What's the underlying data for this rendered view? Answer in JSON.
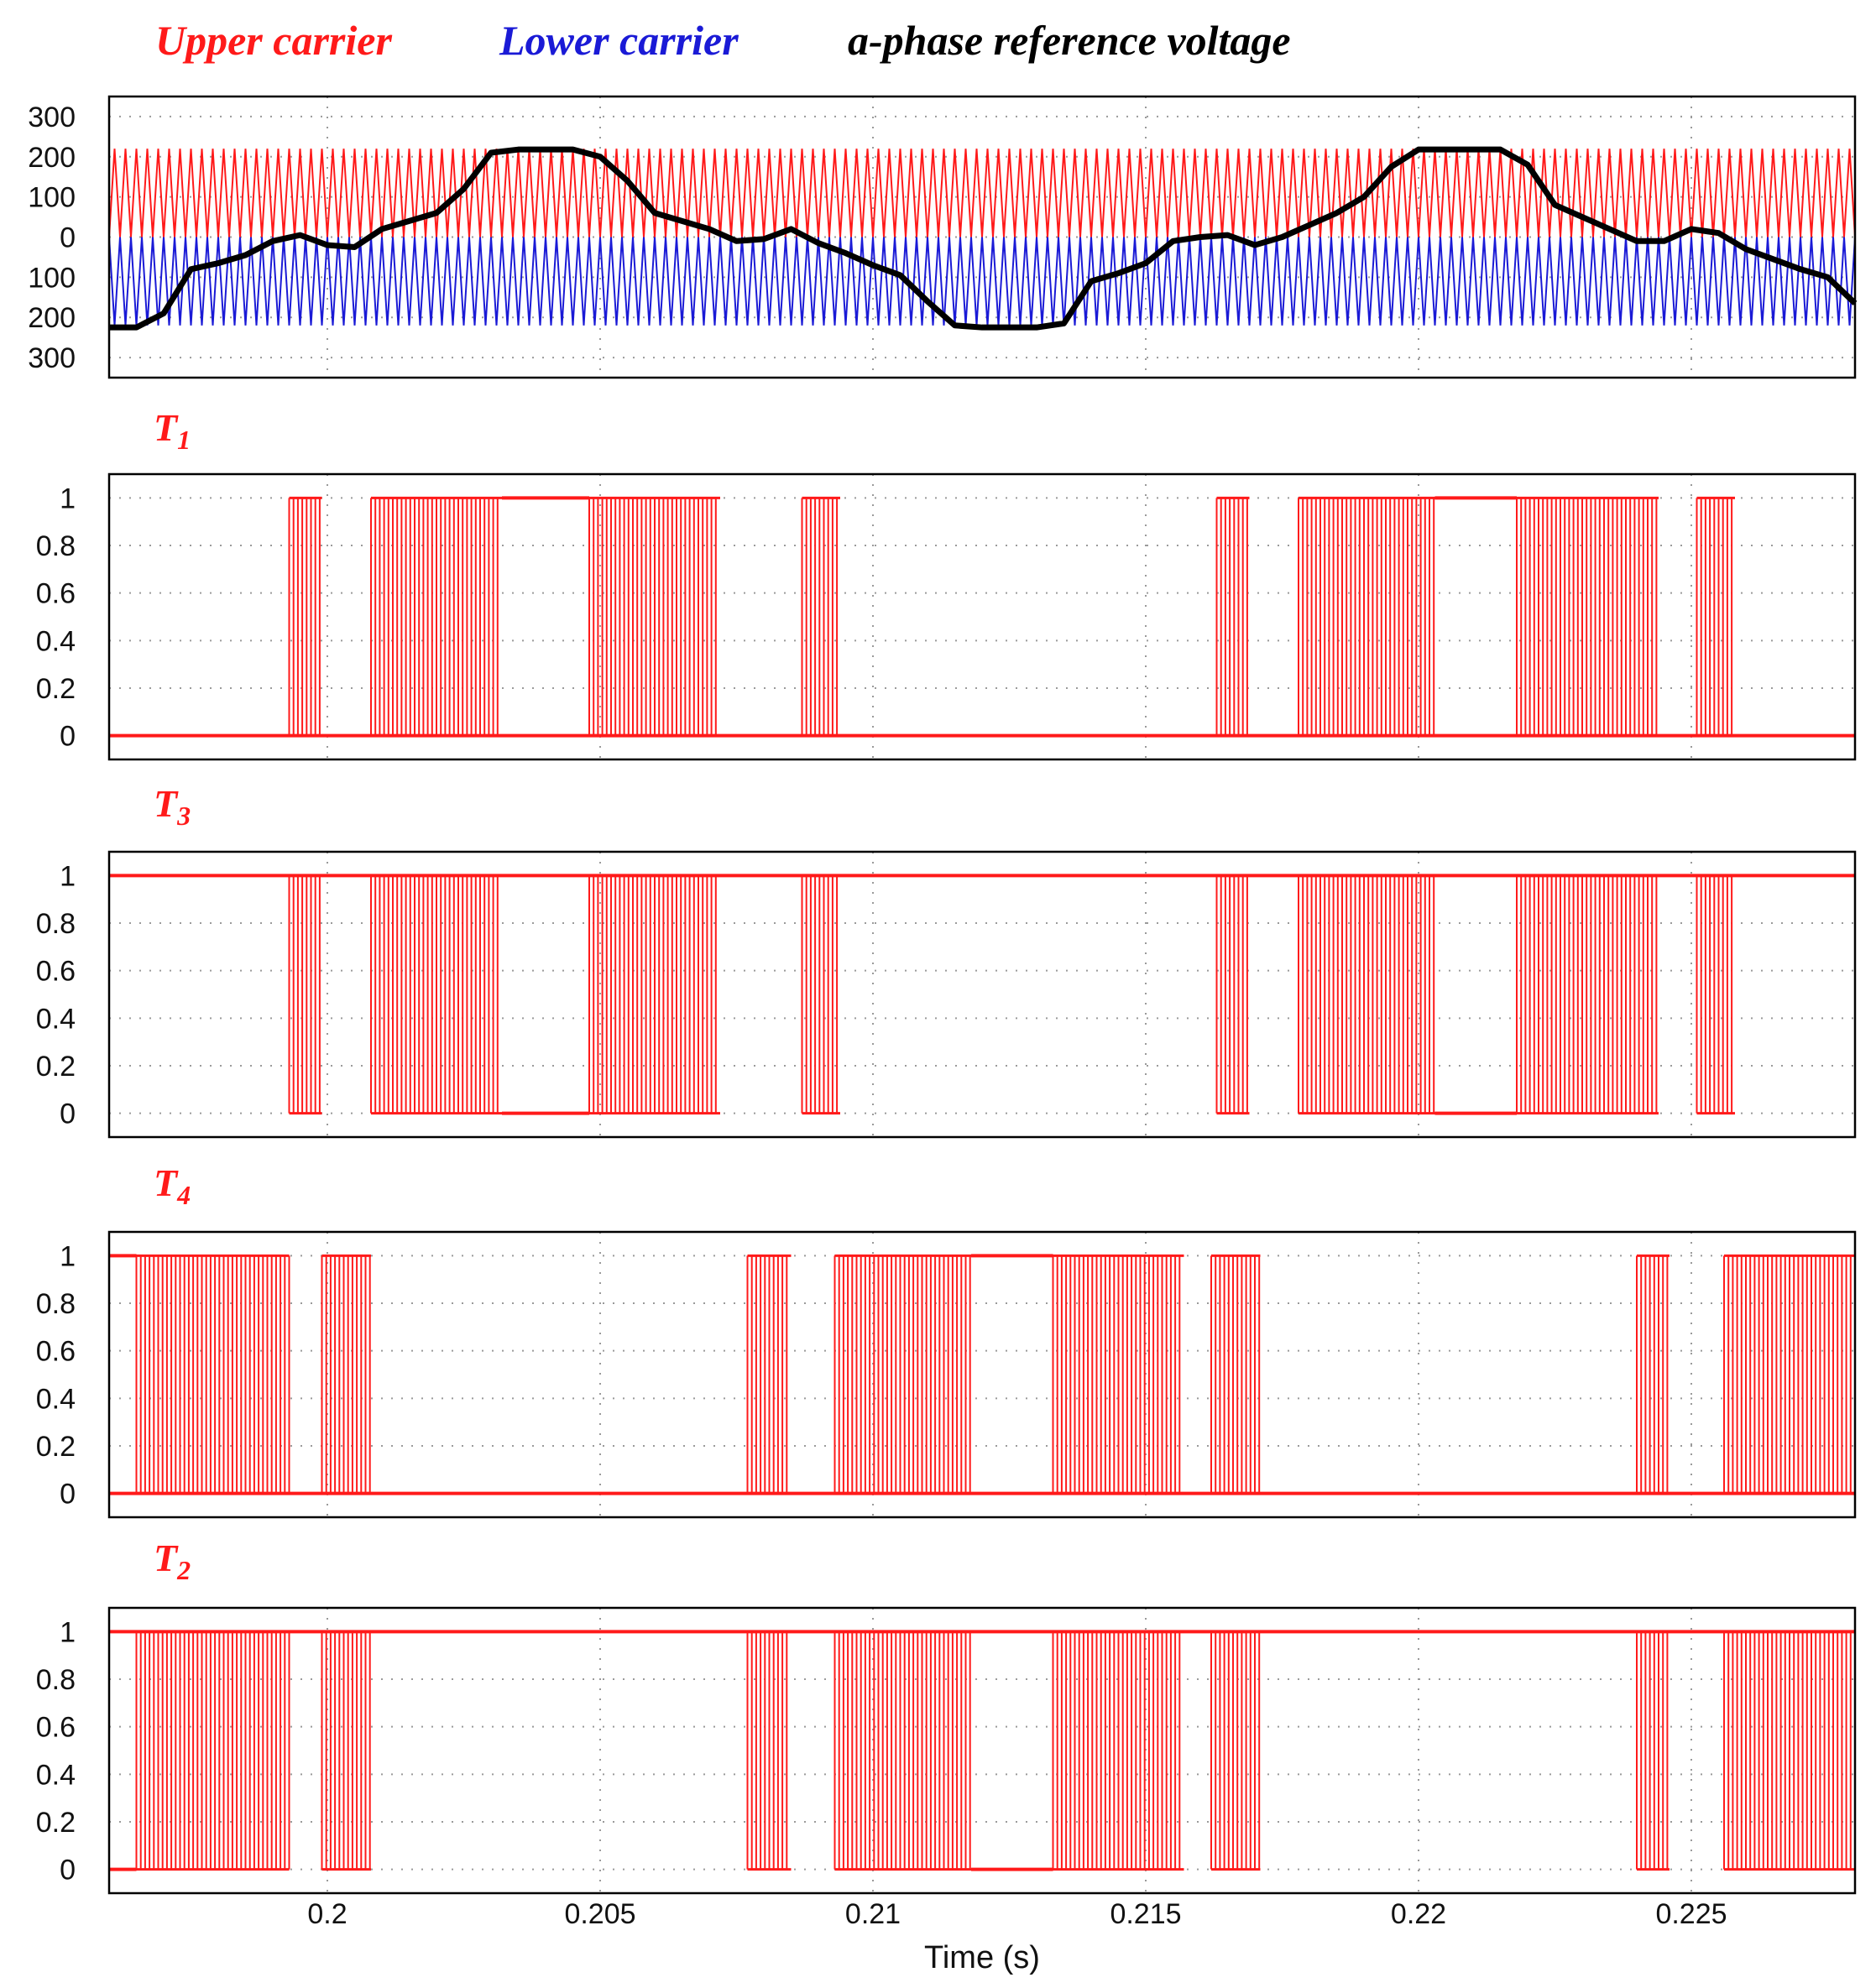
{
  "colors": {
    "upper": "#ff1a1a",
    "lower": "#1a1ad6",
    "reference": "#000000",
    "pulse": "#ff1a1a",
    "grid": "#9a9a9a",
    "frame": "#000000"
  },
  "chart_data": {
    "type": "line",
    "legend": [
      {
        "label": "Upper carrier",
        "color": "#ff1a1a"
      },
      {
        "label": "Lower carrier",
        "color": "#1a1ad6"
      },
      {
        "label": "a-phase reference voltage",
        "color": "#000000"
      }
    ],
    "xlabel": "Time (s)",
    "xlim": [
      0.196,
      0.228
    ],
    "xticks": [
      0.2,
      0.205,
      0.21,
      0.215,
      0.22,
      0.225
    ],
    "xtick_labels": [
      "0.2",
      "0.205",
      "0.21",
      "0.215",
      "0.22",
      "0.225"
    ],
    "carrier_plot": {
      "ylim": [
        -350,
        350
      ],
      "yticks": [
        300,
        200,
        100,
        0,
        -100,
        -200,
        -300
      ],
      "ytick_labels": [
        "300",
        "200",
        "100",
        "0",
        "100",
        "200",
        "300"
      ],
      "upper_carrier_range": [
        0,
        220
      ],
      "lower_carrier_range": [
        -220,
        0
      ],
      "carrier_cycles": 160,
      "reference": {
        "x": [
          0.196,
          0.1965,
          0.197,
          0.1975,
          0.198,
          0.1985,
          0.199,
          0.1995,
          0.2,
          0.2005,
          0.201,
          0.2015,
          0.202,
          0.2025,
          0.203,
          0.2035,
          0.204,
          0.2045,
          0.205,
          0.2055,
          0.206,
          0.2065,
          0.207,
          0.2075,
          0.208,
          0.2085,
          0.209,
          0.2095,
          0.21,
          0.2105,
          0.211,
          0.2115,
          0.212,
          0.2125,
          0.213,
          0.2135,
          0.214,
          0.2145,
          0.215,
          0.2155,
          0.216,
          0.2165,
          0.217,
          0.2175,
          0.218,
          0.2185,
          0.219,
          0.2195,
          0.22,
          0.2205,
          0.221,
          0.2215,
          0.222,
          0.2225,
          0.223,
          0.2235,
          0.224,
          0.2245,
          0.225,
          0.2255,
          0.226,
          0.2265,
          0.227,
          0.2275,
          0.228
        ],
        "y": [
          -225,
          -225,
          -190,
          -80,
          -65,
          -45,
          -10,
          5,
          -20,
          -25,
          20,
          40,
          60,
          120,
          210,
          218,
          218,
          218,
          200,
          140,
          60,
          40,
          20,
          -10,
          -5,
          20,
          -15,
          -40,
          -70,
          -95,
          -160,
          -220,
          -225,
          -225,
          -225,
          -215,
          -110,
          -90,
          -65,
          -10,
          0,
          5,
          -20,
          0,
          30,
          60,
          100,
          175,
          218,
          218,
          218,
          218,
          180,
          80,
          50,
          20,
          -10,
          -10,
          20,
          10,
          -30,
          -55,
          -80,
          -100,
          -165
        ]
      }
    },
    "pulse_plots": [
      {
        "name": "T1",
        "ylim": [
          -0.1,
          1.1
        ],
        "yticks": [
          1,
          0.8,
          0.6,
          0.4,
          0.2,
          0
        ],
        "ytick_labels": [
          "1",
          "0.8",
          "0.6",
          "0.4",
          "0.2",
          "0"
        ],
        "base_level": 0,
        "switching_intervals": [
          [
            0.1993,
            0.1999
          ],
          [
            0.2008,
            0.2032
          ],
          [
            0.2048,
            0.2072
          ],
          [
            0.2087,
            0.2094
          ],
          [
            0.2163,
            0.2169
          ],
          [
            0.2178,
            0.2203
          ],
          [
            0.2218,
            0.2244
          ],
          [
            0.2251,
            0.2258
          ]
        ],
        "high_intervals": [
          [
            0.2032,
            0.2048
          ],
          [
            0.2203,
            0.2218
          ]
        ]
      },
      {
        "name": "T3",
        "ylim": [
          -0.1,
          1.1
        ],
        "yticks": [
          1,
          0.8,
          0.6,
          0.4,
          0.2,
          0
        ],
        "ytick_labels": [
          "1",
          "0.8",
          "0.6",
          "0.4",
          "0.2",
          "0"
        ],
        "base_level": 1,
        "switching_intervals": [
          [
            0.1993,
            0.1999
          ],
          [
            0.2008,
            0.2032
          ],
          [
            0.2048,
            0.2072
          ],
          [
            0.2087,
            0.2094
          ],
          [
            0.2163,
            0.2169
          ],
          [
            0.2178,
            0.2203
          ],
          [
            0.2218,
            0.2244
          ],
          [
            0.2251,
            0.2258
          ]
        ],
        "low_intervals": [
          [
            0.2032,
            0.2048
          ],
          [
            0.2203,
            0.2218
          ]
        ]
      },
      {
        "name": "T4",
        "ylim": [
          -0.1,
          1.1
        ],
        "yticks": [
          1,
          0.8,
          0.6,
          0.4,
          0.2,
          0
        ],
        "ytick_labels": [
          "1",
          "0.8",
          "0.6",
          "0.4",
          "0.2",
          "0"
        ],
        "base_level": 0,
        "switching_intervals": [
          [
            0.1965,
            0.1993
          ],
          [
            0.1999,
            0.2008
          ],
          [
            0.2077,
            0.2085
          ],
          [
            0.2093,
            0.2118
          ],
          [
            0.2133,
            0.2157
          ],
          [
            0.2162,
            0.2171
          ],
          [
            0.224,
            0.2246
          ],
          [
            0.2256,
            0.228
          ]
        ],
        "high_intervals": [
          [
            0.196,
            0.1965
          ],
          [
            0.2118,
            0.2133
          ]
        ]
      },
      {
        "name": "T2",
        "ylim": [
          -0.1,
          1.1
        ],
        "yticks": [
          1,
          0.8,
          0.6,
          0.4,
          0.2,
          0
        ],
        "ytick_labels": [
          "1",
          "0.8",
          "0.6",
          "0.4",
          "0.2",
          "0"
        ],
        "base_level": 1,
        "switching_intervals": [
          [
            0.1965,
            0.1993
          ],
          [
            0.1999,
            0.2008
          ],
          [
            0.2077,
            0.2085
          ],
          [
            0.2093,
            0.2118
          ],
          [
            0.2133,
            0.2157
          ],
          [
            0.2162,
            0.2171
          ],
          [
            0.224,
            0.2246
          ],
          [
            0.2256,
            0.228
          ]
        ],
        "low_intervals": [
          [
            0.196,
            0.1965
          ],
          [
            0.2118,
            0.2133
          ]
        ]
      }
    ]
  }
}
